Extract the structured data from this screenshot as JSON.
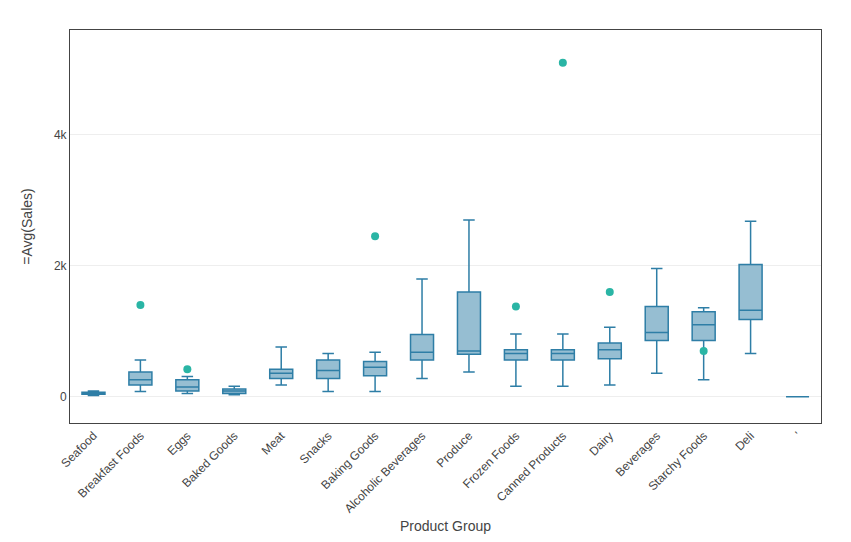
{
  "chart_data": {
    "type": "box",
    "xlabel": "Product Group",
    "ylabel": "=Avg(Sales)",
    "categories": [
      "Seafood",
      "Breakfast Foods",
      "Eggs",
      "Baked Goods",
      "Meat",
      "Snacks",
      "Baking Goods",
      "Alcoholic Beverages",
      "Produce",
      "Frozen Foods",
      "Canned Products",
      "Dairy",
      "Beverages",
      "Starchy Foods",
      "Deli",
      "'"
    ],
    "series": [
      {
        "type": "box",
        "color": "#2e7ea6",
        "min": [
          20,
          80,
          50,
          30,
          180,
          80,
          80,
          280,
          380,
          160,
          160,
          180,
          360,
          260,
          660,
          0
        ],
        "q1": [
          40,
          180,
          90,
          50,
          280,
          280,
          320,
          560,
          650,
          560,
          560,
          580,
          860,
          860,
          1180,
          0
        ],
        "median": [
          55,
          260,
          150,
          90,
          360,
          400,
          450,
          680,
          700,
          660,
          660,
          720,
          980,
          1100,
          1320,
          0
        ],
        "q3": [
          70,
          380,
          260,
          120,
          420,
          560,
          540,
          950,
          1600,
          720,
          720,
          820,
          1380,
          1300,
          2020,
          0
        ],
        "max": [
          90,
          560,
          310,
          160,
          760,
          660,
          680,
          1800,
          2700,
          960,
          960,
          1060,
          1960,
          1360,
          2680,
          0
        ]
      },
      {
        "type": "scatter",
        "color": "#2ab5a5",
        "values": [
          [],
          [
            1400
          ],
          [
            420
          ],
          [],
          [],
          [],
          [
            2450
          ],
          [],
          [],
          [
            1380
          ],
          [
            5100
          ],
          [
            1600
          ],
          [],
          [
            700
          ],
          [],
          []
        ]
      }
    ],
    "ylim": [
      -400,
      5600
    ],
    "yticks": [
      0,
      {
        "value": 2000,
        "label": "2k"
      },
      {
        "value": 4000,
        "label": "4k"
      }
    ],
    "grid": true
  }
}
